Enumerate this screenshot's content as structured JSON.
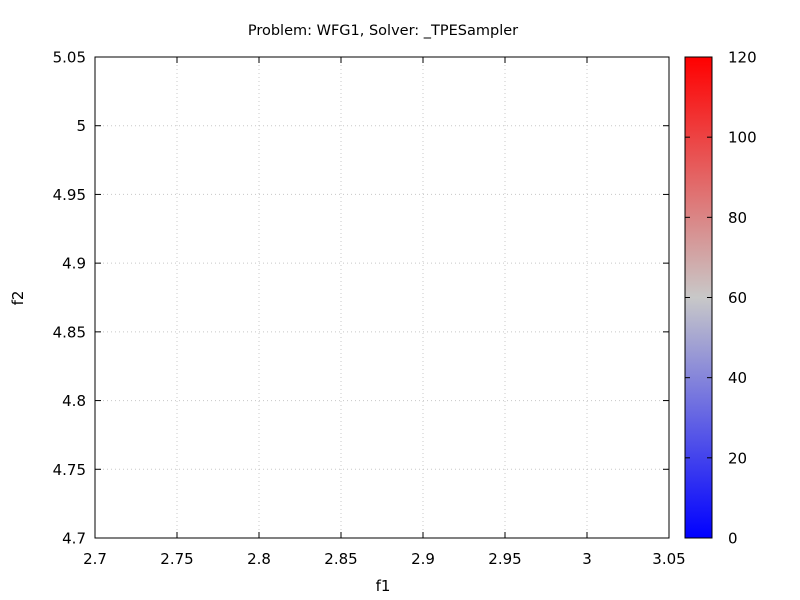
{
  "chart_data": {
    "type": "scatter",
    "title": "Problem: WFG1, Solver: _TPESampler",
    "xlabel": "f1",
    "ylabel": "f2",
    "xlim": [
      2.7,
      3.05
    ],
    "ylim": [
      4.7,
      5.05
    ],
    "x_ticks": [
      "2.7",
      "2.75",
      "2.8",
      "2.85",
      "2.9",
      "2.95",
      "3",
      "3.05"
    ],
    "y_ticks": [
      "4.7",
      "4.75",
      "4.8",
      "4.85",
      "4.9",
      "4.95",
      "5",
      "5.05"
    ],
    "grid": true,
    "points": [],
    "colorbar": {
      "range": [
        0,
        120
      ],
      "ticks": [
        "0",
        "20",
        "40",
        "60",
        "80",
        "100",
        "120"
      ],
      "colors": [
        "#0000ff",
        "#c8c8c8",
        "#ff0000"
      ]
    }
  }
}
